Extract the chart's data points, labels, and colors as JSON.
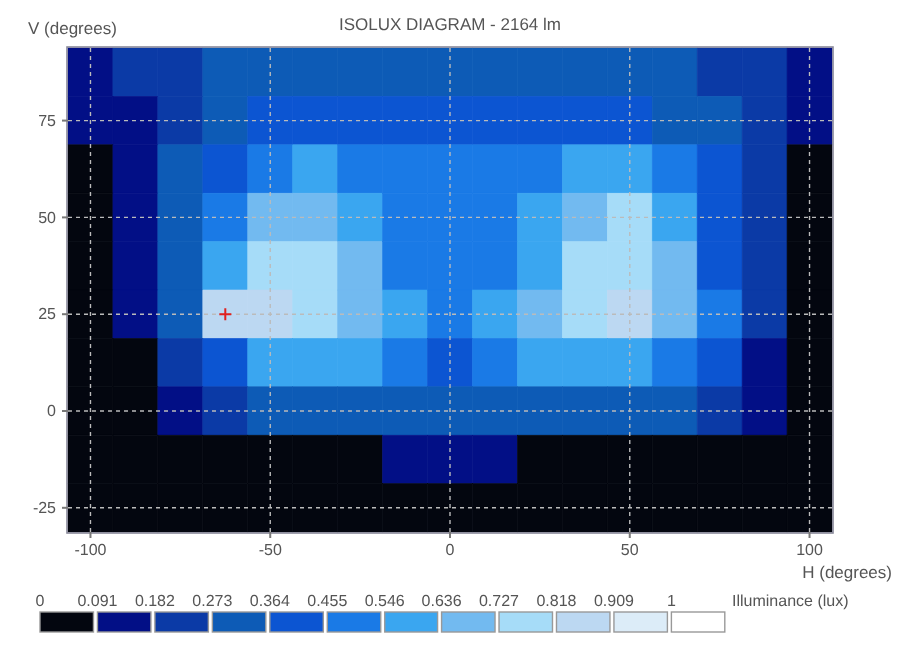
{
  "chart_data": {
    "type": "heatmap",
    "title": "ISOLUX DIAGRAM - 2164 lm",
    "xlabel": "H (degrees)",
    "ylabel": "V (degrees)",
    "clabel": "Illuminance (lux)",
    "categories": [
      "-100",
      null,
      null,
      null,
      "-50",
      null,
      null,
      null,
      "0",
      null,
      null,
      null,
      "50",
      null,
      null,
      null,
      "100"
    ],
    "y_categories": [
      null,
      "75",
      null,
      "50",
      null,
      "25",
      null,
      "0",
      null,
      "-25"
    ],
    "grid": true,
    "clim": [
      0,
      1
    ],
    "cticks": [
      0,
      0.091,
      0.182,
      0.273,
      0.364,
      0.455,
      0.546,
      0.636,
      0.727,
      0.818,
      0.909,
      1
    ],
    "colors": [
      "#03060f",
      "#020f86",
      "#0b3aa6",
      "#0d5bb6",
      "#0c55d2",
      "#1a7ae6",
      "#3aa6f0",
      "#72baf0",
      "#a6dcf8",
      "#bcd8f2",
      "#dcecf8",
      "#ffffff"
    ],
    "cells": [
      [
        0.14,
        0.23,
        0.23,
        0.32,
        0.32,
        0.32,
        0.32,
        0.32,
        0.32,
        0.32,
        0.32,
        0.32,
        0.32,
        0.32,
        0.23,
        0.23,
        0.14
      ],
      [
        0.14,
        0.14,
        0.23,
        0.32,
        0.41,
        0.41,
        0.41,
        0.41,
        0.41,
        0.41,
        0.41,
        0.41,
        0.41,
        0.32,
        0.32,
        0.23,
        0.14
      ],
      [
        0.05,
        0.14,
        0.32,
        0.41,
        0.5,
        0.59,
        0.5,
        0.5,
        0.5,
        0.5,
        0.5,
        0.59,
        0.59,
        0.5,
        0.41,
        0.23,
        0.05
      ],
      [
        0.05,
        0.14,
        0.32,
        0.5,
        0.68,
        0.68,
        0.59,
        0.5,
        0.5,
        0.5,
        0.59,
        0.68,
        0.77,
        0.59,
        0.41,
        0.23,
        0.05
      ],
      [
        0.05,
        0.14,
        0.32,
        0.59,
        0.77,
        0.77,
        0.68,
        0.5,
        0.5,
        0.5,
        0.59,
        0.77,
        0.77,
        0.68,
        0.41,
        0.23,
        0.05
      ],
      [
        0.05,
        0.14,
        0.32,
        0.86,
        0.86,
        0.77,
        0.68,
        0.59,
        0.5,
        0.59,
        0.68,
        0.77,
        0.86,
        0.68,
        0.5,
        0.23,
        0.05
      ],
      [
        0.05,
        0.05,
        0.23,
        0.41,
        0.59,
        0.59,
        0.59,
        0.5,
        0.41,
        0.5,
        0.59,
        0.59,
        0.59,
        0.5,
        0.41,
        0.14,
        0.05
      ],
      [
        0.05,
        0.05,
        0.14,
        0.23,
        0.32,
        0.32,
        0.32,
        0.32,
        0.32,
        0.32,
        0.32,
        0.32,
        0.32,
        0.32,
        0.23,
        0.14,
        0.05
      ],
      [
        0.05,
        0.05,
        0.05,
        0.05,
        0.05,
        0.05,
        0.05,
        0.14,
        0.14,
        0.14,
        0.05,
        0.05,
        0.05,
        0.05,
        0.05,
        0.05,
        0.05
      ],
      [
        0.05,
        0.05,
        0.05,
        0.05,
        0.05,
        0.05,
        0.05,
        0.05,
        0.05,
        0.05,
        0.05,
        0.05,
        0.05,
        0.05,
        0.05,
        0.05,
        0.05
      ]
    ]
  }
}
